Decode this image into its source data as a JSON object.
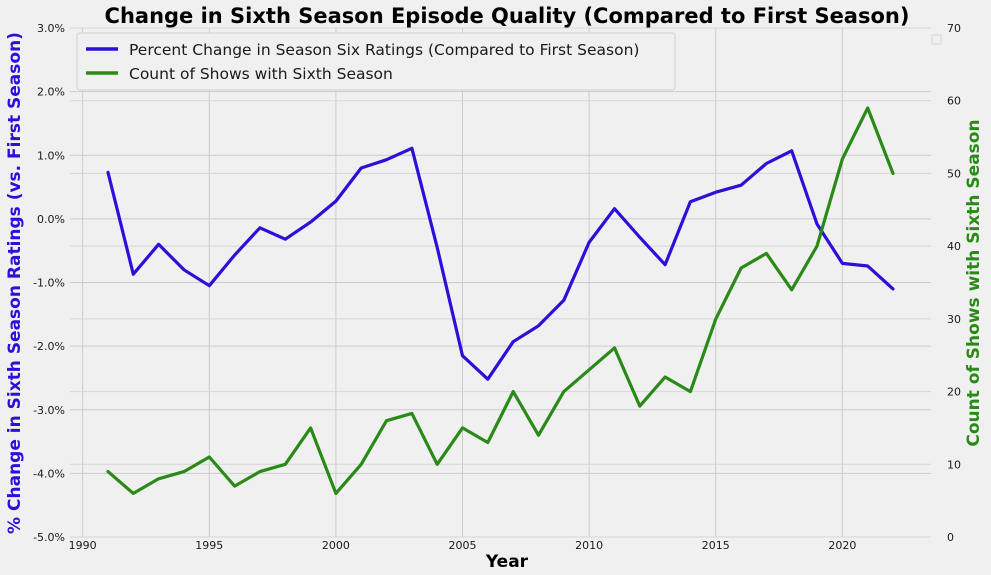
{
  "chart_data": {
    "type": "line",
    "title": "Change in Sixth Season Episode Quality (Compared to First Season)",
    "xlabel": "Year",
    "ylabel_left": "% Change in Sixth Season Ratings  (vs. First Season)",
    "ylabel_right": "Count of Shows with Sixth Season",
    "x": [
      1991,
      1992,
      1993,
      1994,
      1995,
      1996,
      1997,
      1998,
      1999,
      2000,
      2001,
      2002,
      2003,
      2004,
      2005,
      2006,
      2007,
      2008,
      2009,
      2010,
      2011,
      2012,
      2013,
      2014,
      2015,
      2016,
      2017,
      2018,
      2019,
      2020,
      2021,
      2022
    ],
    "xlim": [
      1989.5,
      2023.5
    ],
    "xticks": [
      1990,
      1995,
      2000,
      2005,
      2010,
      2015,
      2020
    ],
    "ylim_left": [
      -5.0,
      3.0
    ],
    "yticks_left": [
      "-5.0%",
      "-4.0%",
      "-3.0%",
      "-2.0%",
      "-1.0%",
      "0.0%",
      "1.0%",
      "2.0%",
      "3.0%"
    ],
    "ylim_right": [
      0,
      70
    ],
    "yticks_right": [
      "0",
      "10",
      "20",
      "30",
      "40",
      "50",
      "60",
      "70"
    ],
    "grid": true,
    "legend_position": "top-left",
    "series": [
      {
        "name": "Percent Change in Season Six Ratings (Compared to First Season)",
        "axis": "left",
        "color": "#2a10d8",
        "values": [
          0.73,
          -0.87,
          -0.4,
          -0.8,
          -1.05,
          -0.57,
          -0.14,
          -0.32,
          -0.05,
          0.28,
          0.8,
          0.93,
          1.11,
          -0.45,
          -2.15,
          -2.52,
          -1.93,
          -1.68,
          -1.28,
          -0.37,
          0.16,
          -0.29,
          -0.72,
          0.27,
          0.42,
          0.53,
          0.87,
          1.07,
          -0.08,
          -0.7,
          -0.74,
          -1.1
        ]
      },
      {
        "name": "Count of Shows with Sixth Season",
        "axis": "right",
        "color": "#2a8a18",
        "values": [
          9,
          6,
          8,
          9,
          11,
          7,
          9,
          10,
          15,
          6,
          10,
          16,
          17,
          10,
          15,
          13,
          20,
          14,
          20,
          23,
          26,
          18,
          22,
          20,
          30,
          37,
          39,
          34,
          40,
          52,
          59,
          50
        ]
      }
    ]
  }
}
